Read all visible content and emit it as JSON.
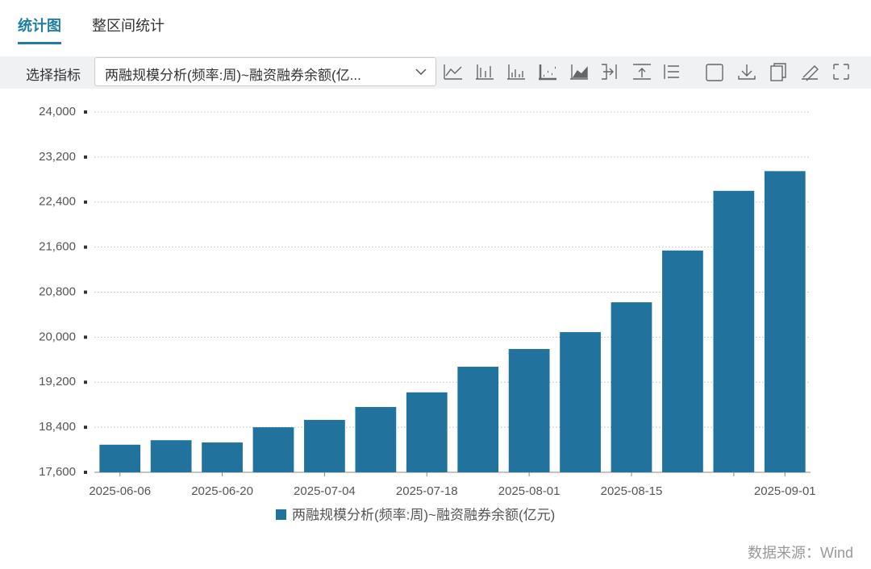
{
  "tabs": [
    "统计图",
    "整区间统计"
  ],
  "toolbar": {
    "label": "选择指标",
    "select": "两融规模分析(频率:周)~融资融券余额(亿..."
  },
  "source": "数据来源：Wind",
  "chart_data": {
    "type": "bar",
    "categories": [
      "2025-06-06",
      null,
      "2025-06-20",
      null,
      "2025-07-04",
      null,
      "2025-07-18",
      null,
      "2025-08-01",
      null,
      "2025-08-15",
      null,
      null,
      "2025-09-01"
    ],
    "series": [
      {
        "name": "两融规模分析(频率:周)~融资融券余额(亿元)",
        "color": "#21739e",
        "values": [
          18090,
          18170,
          18130,
          18400,
          18530,
          18760,
          19020,
          19475,
          19790,
          20090,
          20620,
          21540,
          22600,
          22950
        ]
      }
    ],
    "ylim": [
      17600,
      24000
    ],
    "yticks": [
      {
        "value": 17600,
        "label": "17,600"
      },
      {
        "value": 18400,
        "label": "18,400"
      },
      {
        "value": 19200,
        "label": "19,200"
      },
      {
        "value": 20000,
        "label": "20,000"
      },
      {
        "value": 20800,
        "label": "20,800"
      },
      {
        "value": 21600,
        "label": "21,600"
      },
      {
        "value": 22400,
        "label": "22,400"
      },
      {
        "value": 23200,
        "label": "23,200"
      },
      {
        "value": 24000,
        "label": "24,000"
      }
    ],
    "grid": true
  }
}
